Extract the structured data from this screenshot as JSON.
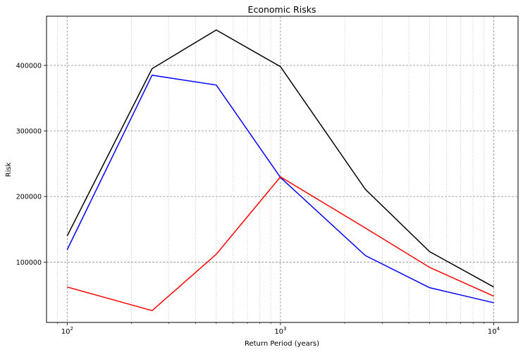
{
  "chart_data": {
    "type": "line",
    "title": "Economic Risks",
    "xlabel": "Return Period (years)",
    "ylabel": "Risk",
    "xscale": "log",
    "xlim": [
      80,
      13000
    ],
    "ylim": [
      8000,
      475000
    ],
    "grid": true,
    "legend": "none",
    "x_ticks": [
      {
        "value": 100,
        "base": "10",
        "exp": "2"
      },
      {
        "value": 1000,
        "base": "10",
        "exp": "3"
      },
      {
        "value": 10000,
        "base": "10",
        "exp": "4"
      }
    ],
    "y_ticks": [
      100000,
      200000,
      300000,
      400000
    ],
    "x": [
      100,
      250,
      500,
      1000,
      2500,
      5000,
      10000
    ],
    "series": [
      {
        "color": "#000000",
        "values": [
          140000,
          395000,
          454000,
          398000,
          211000,
          116000,
          62000
        ]
      },
      {
        "color": "#0000ff",
        "values": [
          119000,
          385000,
          370000,
          229000,
          110000,
          61000,
          38000
        ]
      },
      {
        "color": "#ff0000",
        "values": [
          62000,
          26000,
          112000,
          230000,
          152000,
          92000,
          48000
        ]
      }
    ]
  }
}
